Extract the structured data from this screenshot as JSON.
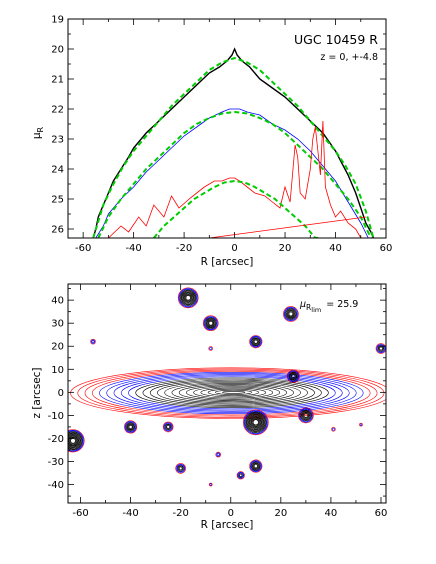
{
  "chart_data": [
    {
      "type": "line",
      "title": "UGC 10459 R",
      "subtitle": "z = 0, +-4.8",
      "xlabel": "R [arcsec]",
      "ylabel": "μ",
      "ylabel_sub": "R",
      "xlim": [
        -66,
        60
      ],
      "ylim": [
        26.3,
        19
      ],
      "y_inverted": true,
      "xticks": [
        -60,
        -40,
        -20,
        0,
        20,
        40,
        60
      ],
      "yticks": [
        19,
        20,
        21,
        22,
        23,
        24,
        25,
        26
      ],
      "series": [
        {
          "color": "#000000",
          "style": "solid",
          "x": [
            -56,
            -55,
            -54,
            -52,
            -50,
            -48,
            -45,
            -42,
            -40,
            -35,
            -30,
            -25,
            -20,
            -15,
            -10,
            -6,
            -3,
            -1,
            0,
            1,
            3,
            6,
            10,
            15,
            20,
            25,
            30,
            35,
            40,
            45,
            48,
            50,
            52,
            54,
            55
          ],
          "y": [
            26.3,
            26.0,
            25.6,
            25.2,
            24.8,
            24.4,
            24.0,
            23.6,
            23.3,
            22.8,
            22.4,
            22.0,
            21.6,
            21.2,
            20.8,
            20.6,
            20.4,
            20.2,
            20.0,
            20.2,
            20.4,
            20.6,
            21.0,
            21.3,
            21.6,
            22.0,
            22.4,
            22.8,
            23.4,
            24.2,
            24.8,
            25.3,
            25.8,
            26.1,
            26.3
          ]
        },
        {
          "color": "#00cc00",
          "style": "dashed",
          "x": [
            -56,
            -52,
            -48,
            -44,
            -40,
            -35,
            -30,
            -25,
            -20,
            -15,
            -10,
            -5,
            0,
            5,
            10,
            15,
            20,
            25,
            30,
            35,
            40,
            44,
            48,
            52,
            55
          ],
          "y": [
            26.3,
            25.2,
            24.5,
            23.9,
            23.4,
            22.9,
            22.4,
            21.9,
            21.5,
            21.1,
            20.7,
            20.45,
            20.3,
            20.45,
            20.7,
            21.1,
            21.5,
            21.9,
            22.4,
            22.9,
            23.4,
            23.9,
            24.5,
            25.4,
            26.3
          ]
        },
        {
          "color": "#0000ff",
          "style": "solid",
          "x": [
            -55,
            -52,
            -50,
            -45,
            -40,
            -35,
            -30,
            -25,
            -20,
            -15,
            -10,
            -5,
            -2,
            0,
            2,
            5,
            10,
            15,
            20,
            25,
            30,
            35,
            40,
            45,
            50,
            53
          ],
          "y": [
            26.3,
            25.9,
            25.5,
            25.0,
            24.6,
            24.1,
            23.7,
            23.3,
            22.9,
            22.6,
            22.3,
            22.1,
            22.0,
            22.0,
            22.0,
            22.1,
            22.2,
            22.5,
            22.7,
            23.0,
            23.4,
            23.9,
            24.4,
            25.1,
            25.8,
            26.3
          ]
        },
        {
          "color": "#00cc00",
          "style": "dashed",
          "x": [
            -54,
            -50,
            -45,
            -40,
            -35,
            -30,
            -25,
            -20,
            -15,
            -10,
            -5,
            0,
            5,
            10,
            15,
            20,
            25,
            30,
            35,
            40,
            45,
            50,
            54
          ],
          "y": [
            26.3,
            25.6,
            25.0,
            24.5,
            24.0,
            23.6,
            23.2,
            22.8,
            22.5,
            22.3,
            22.15,
            22.1,
            22.15,
            22.3,
            22.5,
            22.8,
            23.2,
            23.6,
            24.0,
            24.5,
            25.0,
            25.6,
            26.3
          ]
        },
        {
          "color": "#ff0000",
          "style": "solid",
          "x": [
            -50,
            -45,
            -42,
            -38,
            -35,
            -32,
            -28,
            -25,
            -22,
            -18,
            -15,
            -12,
            -8,
            -5,
            -2,
            0,
            2,
            5,
            8,
            12,
            15,
            18,
            20,
            22,
            24,
            25,
            26,
            28,
            30,
            31,
            32,
            33,
            34,
            35,
            36,
            38,
            40,
            42,
            45,
            48,
            50
          ],
          "y": [
            26.3,
            25.9,
            26.1,
            25.6,
            25.9,
            25.2,
            25.6,
            24.9,
            25.3,
            25.0,
            24.8,
            24.6,
            24.4,
            24.4,
            24.3,
            24.3,
            24.4,
            24.6,
            24.8,
            24.9,
            25.1,
            25.3,
            24.6,
            25.1,
            23.2,
            23.6,
            24.8,
            25.0,
            24.0,
            23.0,
            22.6,
            23.4,
            24.2,
            22.4,
            24.6,
            25.2,
            25.6,
            25.4,
            25.8,
            26.0,
            26.3
          ]
        },
        {
          "color": "#00cc00",
          "style": "dashed",
          "x": [
            -32,
            -28,
            -24,
            -20,
            -16,
            -12,
            -8,
            -4,
            0,
            4,
            8,
            12,
            16,
            20,
            24,
            28,
            32,
            34
          ],
          "y": [
            26.3,
            25.9,
            25.6,
            25.3,
            25.0,
            24.8,
            24.6,
            24.45,
            24.4,
            24.45,
            24.6,
            24.8,
            25.0,
            25.3,
            25.6,
            25.9,
            26.3,
            26.3
          ]
        },
        {
          "color": "#ff0000",
          "style": "solid",
          "x": [
            -10,
            52
          ],
          "y": [
            26.3,
            25.6
          ]
        }
      ]
    },
    {
      "type": "contour",
      "xlabel": "R [arcsec]",
      "ylabel": "z [arcsec]",
      "xlim": [
        -65,
        62
      ],
      "ylim": [
        -48,
        47
      ],
      "xticks": [
        -60,
        -40,
        -20,
        0,
        20,
        40,
        60
      ],
      "yticks": [
        -40,
        -30,
        -20,
        -10,
        0,
        10,
        20,
        30,
        40
      ],
      "annotation": "μ",
      "annotation_sub": "R",
      "annotation_subsub": "lim",
      "annotation_value": "= 25.9",
      "contour_colors": {
        "outer": "#ff0000",
        "mid": "#0000ff",
        "inner": "#000000"
      },
      "sources": [
        {
          "x": -17,
          "y": 41,
          "r": 4
        },
        {
          "x": -8,
          "y": 30,
          "r": 3
        },
        {
          "x": 10,
          "y": 22,
          "r": 2.5
        },
        {
          "x": 24,
          "y": 34,
          "r": 3
        },
        {
          "x": -55,
          "y": 22,
          "r": 1
        },
        {
          "x": 60,
          "y": 19,
          "r": 2
        },
        {
          "x": -8,
          "y": 19,
          "r": 0.8
        },
        {
          "x": 25,
          "y": 7,
          "r": 2.5
        },
        {
          "x": 30,
          "y": -10,
          "r": 3
        },
        {
          "x": 10,
          "y": -13,
          "r": 5
        },
        {
          "x": -40,
          "y": -15,
          "r": 2.5
        },
        {
          "x": -25,
          "y": -15,
          "r": 2
        },
        {
          "x": -63,
          "y": -21,
          "r": 4.5
        },
        {
          "x": 10,
          "y": -32,
          "r": 2.5
        },
        {
          "x": -20,
          "y": -33,
          "r": 2
        },
        {
          "x": 4,
          "y": -36,
          "r": 1.5
        },
        {
          "x": -5,
          "y": -27,
          "r": 1
        },
        {
          "x": 41,
          "y": -16,
          "r": 0.8
        },
        {
          "x": 52,
          "y": -14,
          "r": 0.6
        },
        {
          "x": -8,
          "y": -40,
          "r": 0.6
        }
      ]
    }
  ]
}
